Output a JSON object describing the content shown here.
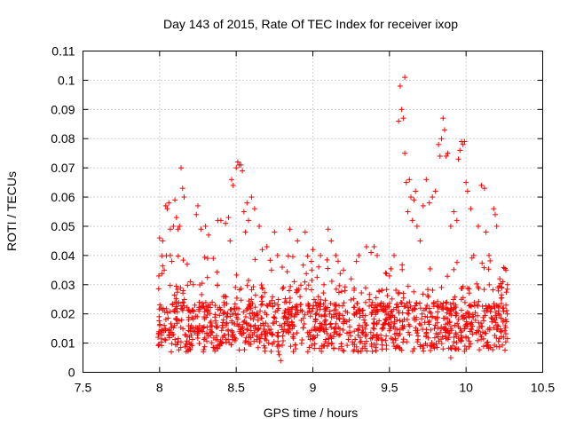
{
  "chart_data": {
    "type": "scatter",
    "title": "Day 143 of 2015, Rate Of TEC Index for receiver ixop",
    "xlabel": "GPS time / hours",
    "ylabel": "ROTI / TECUs",
    "xlim": [
      7.5,
      10.5
    ],
    "ylim": [
      0,
      0.11
    ],
    "xticks": [
      "7.5",
      "8",
      "8.5",
      "9",
      "9.5",
      "10",
      "10.5"
    ],
    "yticks": [
      "0",
      "0.01",
      "0.02",
      "0.03",
      "0.04",
      "0.05",
      "0.06",
      "0.07",
      "0.08",
      "0.09",
      "0.1",
      "0.11"
    ],
    "grid": true,
    "marker": "+",
    "color": "#ff0000",
    "series": [
      {
        "name": "ROTI",
        "points": [
          [
            7.99,
            0.012
          ],
          [
            7.995,
            0.033
          ],
          [
            8.0,
            0.046
          ],
          [
            8.0,
            0.016
          ],
          [
            8.01,
            0.022
          ],
          [
            8.02,
            0.045
          ],
          [
            8.03,
            0.035
          ],
          [
            8.04,
            0.057
          ],
          [
            8.05,
            0.056
          ],
          [
            8.06,
            0.058
          ],
          [
            8.07,
            0.04
          ],
          [
            8.07,
            0.049
          ],
          [
            8.08,
            0.038
          ],
          [
            8.09,
            0.05
          ],
          [
            8.1,
            0.059
          ],
          [
            8.11,
            0.053
          ],
          [
            8.12,
            0.049
          ],
          [
            8.13,
            0.05
          ],
          [
            8.14,
            0.07
          ],
          [
            8.15,
            0.063
          ],
          [
            8.16,
            0.06
          ],
          [
            8.18,
            0.037
          ],
          [
            8.2,
            0.031
          ],
          [
            8.22,
            0.03
          ],
          [
            8.24,
            0.054
          ],
          [
            8.25,
            0.057
          ],
          [
            8.27,
            0.049
          ],
          [
            8.3,
            0.05
          ],
          [
            8.32,
            0.047
          ],
          [
            8.35,
            0.039
          ],
          [
            8.38,
            0.052
          ],
          [
            8.4,
            0.052
          ],
          [
            8.43,
            0.051
          ],
          [
            8.45,
            0.053
          ],
          [
            8.46,
            0.045
          ],
          [
            8.47,
            0.066
          ],
          [
            8.48,
            0.064
          ],
          [
            8.5,
            0.07
          ],
          [
            8.51,
            0.072
          ],
          [
            8.52,
            0.071
          ],
          [
            8.53,
            0.071
          ],
          [
            8.54,
            0.069
          ],
          [
            8.55,
            0.055
          ],
          [
            8.56,
            0.048
          ],
          [
            8.57,
            0.058
          ],
          [
            8.58,
            0.052
          ],
          [
            8.6,
            0.06
          ],
          [
            8.62,
            0.056
          ],
          [
            8.65,
            0.05
          ],
          [
            8.67,
            0.042
          ],
          [
            8.7,
            0.043
          ],
          [
            8.73,
            0.035
          ],
          [
            8.75,
            0.048
          ],
          [
            8.77,
            0.04
          ],
          [
            8.8,
            0.036
          ],
          [
            8.85,
            0.049
          ],
          [
            8.9,
            0.045
          ],
          [
            8.95,
            0.048
          ],
          [
            9.0,
            0.042
          ],
          [
            9.05,
            0.04
          ],
          [
            9.1,
            0.049
          ],
          [
            9.12,
            0.045
          ],
          [
            9.15,
            0.04
          ],
          [
            9.2,
            0.035
          ],
          [
            9.25,
            0.032
          ],
          [
            9.3,
            0.04
          ],
          [
            9.35,
            0.043
          ],
          [
            9.38,
            0.041
          ],
          [
            9.4,
            0.043
          ],
          [
            9.42,
            0.04
          ],
          [
            9.45,
            0.028
          ],
          [
            9.5,
            0.033
          ],
          [
            9.53,
            0.04
          ],
          [
            9.56,
            0.086
          ],
          [
            9.57,
            0.098
          ],
          [
            9.58,
            0.09
          ],
          [
            9.59,
            0.087
          ],
          [
            9.6,
            0.101
          ],
          [
            9.6,
            0.075
          ],
          [
            9.61,
            0.065
          ],
          [
            9.62,
            0.055
          ],
          [
            9.63,
            0.066
          ],
          [
            9.64,
            0.06
          ],
          [
            9.65,
            0.052
          ],
          [
            9.66,
            0.059
          ],
          [
            9.67,
            0.062
          ],
          [
            9.68,
            0.05
          ],
          [
            9.7,
            0.045
          ],
          [
            9.72,
            0.057
          ],
          [
            9.74,
            0.066
          ],
          [
            9.76,
            0.058
          ],
          [
            9.78,
            0.06
          ],
          [
            9.8,
            0.062
          ],
          [
            9.82,
            0.078
          ],
          [
            9.83,
            0.074
          ],
          [
            9.84,
            0.08
          ],
          [
            9.85,
            0.087
          ],
          [
            9.86,
            0.083
          ],
          [
            9.87,
            0.074
          ],
          [
            9.88,
            0.075
          ],
          [
            9.9,
            0.05
          ],
          [
            9.92,
            0.055
          ],
          [
            9.94,
            0.052
          ],
          [
            9.95,
            0.073
          ],
          [
            9.96,
            0.076
          ],
          [
            9.97,
            0.079
          ],
          [
            9.98,
            0.078
          ],
          [
            9.99,
            0.079
          ],
          [
            10.0,
            0.065
          ],
          [
            10.01,
            0.062
          ],
          [
            10.03,
            0.056
          ],
          [
            10.05,
            0.04
          ],
          [
            10.08,
            0.05
          ],
          [
            10.1,
            0.064
          ],
          [
            10.12,
            0.063
          ],
          [
            10.13,
            0.048
          ],
          [
            10.15,
            0.04
          ],
          [
            10.18,
            0.056
          ],
          [
            10.19,
            0.054
          ],
          [
            10.2,
            0.05
          ],
          [
            10.22,
            0.032
          ],
          [
            10.24,
            0.031
          ],
          [
            10.26,
            0.035
          ],
          [
            10.27,
            0.03
          ],
          [
            8.78,
            0.006
          ],
          [
            8.79,
            0.004
          ],
          [
            9.48,
            0.008
          ],
          [
            9.9,
            0.005
          ]
        ]
      }
    ]
  }
}
